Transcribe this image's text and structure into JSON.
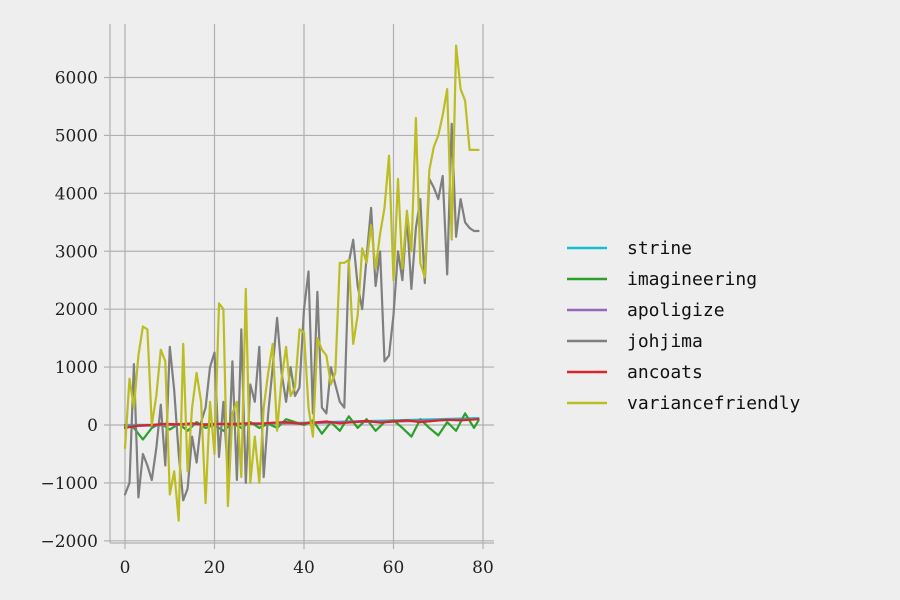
{
  "chart_data": {
    "type": "line",
    "title": "",
    "xlabel": "",
    "ylabel": "",
    "xlim": [
      -2,
      82
    ],
    "ylim": [
      -2050,
      6950
    ],
    "xticks": [
      0,
      20,
      40,
      60,
      80
    ],
    "yticks": [
      -2000,
      -1000,
      0,
      1000,
      2000,
      3000,
      4000,
      5000,
      6000
    ],
    "xtick_labels": [
      "0",
      "20",
      "40",
      "60",
      "80"
    ],
    "ytick_labels": [
      "−2000",
      "−1000",
      "0",
      "1000",
      "2000",
      "3000",
      "4000",
      "5000",
      "6000"
    ],
    "grid": true,
    "legend_position": "right",
    "background": "#eeeeee",
    "series": [
      {
        "name": "strine",
        "color": "#17becf",
        "x": [
          0,
          10,
          20,
          30,
          40,
          50,
          60,
          70,
          79
        ],
        "y": [
          0,
          5,
          10,
          20,
          40,
          60,
          80,
          100,
          120
        ]
      },
      {
        "name": "imagineering",
        "color": "#2ca02c",
        "x": [
          0,
          2,
          4,
          6,
          8,
          10,
          12,
          14,
          16,
          18,
          20,
          22,
          24,
          26,
          28,
          30,
          32,
          34,
          36,
          38,
          40,
          42,
          44,
          46,
          48,
          50,
          52,
          54,
          56,
          58,
          60,
          62,
          64,
          66,
          68,
          70,
          72,
          74,
          76,
          78,
          79
        ],
        "y": [
          0,
          -50,
          -250,
          -50,
          30,
          -80,
          20,
          -100,
          50,
          -50,
          0,
          -100,
          30,
          -50,
          50,
          -50,
          20,
          -50,
          100,
          50,
          0,
          80,
          -150,
          50,
          -100,
          150,
          -50,
          100,
          -100,
          50,
          80,
          -50,
          -200,
          100,
          -50,
          -180,
          50,
          -100,
          200,
          -50,
          80
        ]
      },
      {
        "name": "apoligize",
        "color": "#9467bd",
        "x": [
          0,
          10,
          20,
          30,
          40,
          50,
          60,
          70,
          79
        ],
        "y": [
          -20,
          0,
          20,
          30,
          30,
          50,
          60,
          80,
          100
        ]
      },
      {
        "name": "johjima",
        "color": "#7f7f7f",
        "x": [
          0,
          1,
          2,
          3,
          4,
          5,
          6,
          7,
          8,
          9,
          10,
          11,
          12,
          13,
          14,
          15,
          16,
          17,
          18,
          19,
          20,
          21,
          22,
          23,
          24,
          25,
          26,
          27,
          28,
          29,
          30,
          31,
          32,
          33,
          34,
          35,
          36,
          37,
          38,
          39,
          40,
          41,
          42,
          43,
          44,
          45,
          46,
          47,
          48,
          49,
          50,
          51,
          52,
          53,
          54,
          55,
          56,
          57,
          58,
          59,
          60,
          61,
          62,
          63,
          64,
          65,
          66,
          67,
          68,
          69,
          70,
          71,
          72,
          73,
          74,
          75,
          76,
          77,
          78,
          79
        ],
        "y": [
          -1200,
          -1000,
          1050,
          -1250,
          -500,
          -700,
          -950,
          -400,
          350,
          -700,
          1350,
          600,
          -500,
          -1300,
          -1100,
          -200,
          -650,
          50,
          300,
          1000,
          1250,
          -550,
          400,
          -850,
          1100,
          -950,
          1650,
          -1000,
          700,
          400,
          1350,
          -900,
          200,
          1000,
          1850,
          900,
          400,
          1000,
          500,
          650,
          2000,
          2650,
          200,
          2300,
          300,
          200,
          1000,
          700,
          400,
          300,
          2800,
          3200,
          2400,
          2000,
          2900,
          3750,
          2400,
          3000,
          1100,
          1200,
          1900,
          3000,
          2500,
          3600,
          2350,
          3400,
          3900,
          2450,
          4250,
          4100,
          3900,
          4300,
          2600,
          5200,
          3250,
          3900,
          3500,
          3400,
          3350,
          3350
        ]
      },
      {
        "name": "ancoats",
        "color": "#d62728",
        "x": [
          0,
          3,
          6,
          9,
          12,
          15,
          18,
          21,
          24,
          27,
          30,
          33,
          36,
          39,
          42,
          45,
          48,
          51,
          54,
          57,
          60,
          63,
          66,
          69,
          72,
          75,
          79
        ],
        "y": [
          -50,
          -10,
          0,
          20,
          10,
          30,
          0,
          20,
          10,
          30,
          20,
          40,
          50,
          20,
          40,
          60,
          30,
          50,
          70,
          40,
          60,
          80,
          50,
          70,
          90,
          80,
          100
        ]
      },
      {
        "name": "variancefriendly",
        "color": "#bcbd22",
        "x": [
          0,
          1,
          2,
          3,
          4,
          5,
          6,
          7,
          8,
          9,
          10,
          11,
          12,
          13,
          14,
          15,
          16,
          17,
          18,
          19,
          20,
          21,
          22,
          23,
          24,
          25,
          26,
          27,
          28,
          29,
          30,
          31,
          32,
          33,
          34,
          35,
          36,
          37,
          38,
          39,
          40,
          41,
          42,
          43,
          44,
          45,
          46,
          47,
          48,
          49,
          50,
          51,
          52,
          53,
          54,
          55,
          56,
          57,
          58,
          59,
          60,
          61,
          62,
          63,
          64,
          65,
          66,
          67,
          68,
          69,
          70,
          71,
          72,
          73,
          74,
          75,
          76,
          77,
          78,
          79
        ],
        "y": [
          -400,
          800,
          300,
          1200,
          1700,
          1650,
          0,
          500,
          1300,
          1100,
          -1200,
          -800,
          -1650,
          1400,
          -800,
          300,
          900,
          400,
          -1350,
          400,
          -500,
          2100,
          2000,
          -1400,
          200,
          400,
          -900,
          2350,
          -1000,
          -200,
          -1000,
          300,
          900,
          1400,
          -100,
          800,
          1350,
          500,
          650,
          1650,
          1600,
          300,
          -200,
          1500,
          1300,
          1200,
          700,
          900,
          2800,
          2800,
          2850,
          1400,
          1900,
          3050,
          2800,
          3450,
          2700,
          3300,
          3750,
          4650,
          2500,
          4250,
          2700,
          3700,
          3000,
          5300,
          2800,
          2550,
          4400,
          4800,
          5000,
          5350,
          5800,
          3200,
          6550,
          5800,
          5600,
          4750,
          4750,
          4750
        ]
      }
    ]
  }
}
